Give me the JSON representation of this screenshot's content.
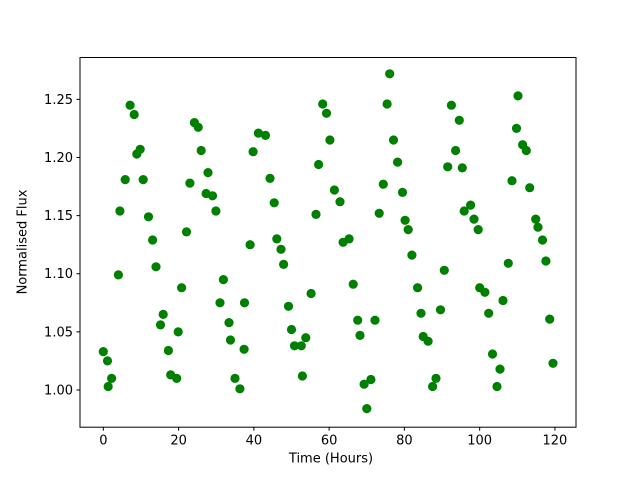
{
  "figure": {
    "background": "#ffffff",
    "axes_box_color": "#000000",
    "text_color": "#000000"
  },
  "chart_data": {
    "type": "scatter",
    "title": "",
    "xlabel": "Time (Hours)",
    "ylabel": "Normalised Flux",
    "xlim": [
      -6.2,
      125.6
    ],
    "ylim": [
      0.968,
      1.286
    ],
    "x_ticks": [
      0,
      20,
      40,
      60,
      80,
      100,
      120
    ],
    "y_ticks": [
      1.0,
      1.05,
      1.1,
      1.15,
      1.2,
      1.25
    ],
    "y_tick_decimals": 2,
    "grid": false,
    "legend_position": "none",
    "series": [
      {
        "name": "normalised-flux-points",
        "marker": "circle",
        "color": "#008000",
        "marker_radius_px": 4.6,
        "points": [
          [
            7.1,
            1.245
          ],
          [
            8.2,
            1.237
          ],
          [
            24.2,
            1.23
          ],
          [
            25.2,
            1.226
          ],
          [
            9.8,
            1.207
          ],
          [
            8.9,
            1.203
          ],
          [
            26.0,
            1.206
          ],
          [
            5.8,
            1.181
          ],
          [
            10.6,
            1.181
          ],
          [
            27.8,
            1.187
          ],
          [
            23.0,
            1.178
          ],
          [
            27.3,
            1.169
          ],
          [
            29.0,
            1.167
          ],
          [
            4.4,
            1.154
          ],
          [
            12.0,
            1.149
          ],
          [
            29.9,
            1.154
          ],
          [
            22.1,
            1.136
          ],
          [
            13.1,
            1.129
          ],
          [
            76.1,
            1.272
          ],
          [
            58.3,
            1.246
          ],
          [
            59.3,
            1.238
          ],
          [
            75.4,
            1.246
          ],
          [
            41.2,
            1.221
          ],
          [
            43.1,
            1.219
          ],
          [
            60.2,
            1.215
          ],
          [
            39.8,
            1.205
          ],
          [
            77.1,
            1.215
          ],
          [
            57.2,
            1.194
          ],
          [
            78.2,
            1.196
          ],
          [
            44.3,
            1.182
          ],
          [
            61.4,
            1.172
          ],
          [
            74.4,
            1.177
          ],
          [
            62.9,
            1.162
          ],
          [
            45.4,
            1.161
          ],
          [
            79.5,
            1.17
          ],
          [
            56.5,
            1.151
          ],
          [
            73.3,
            1.152
          ],
          [
            80.2,
            1.146
          ],
          [
            81.0,
            1.138
          ],
          [
            46.1,
            1.13
          ],
          [
            47.2,
            1.121
          ],
          [
            63.7,
            1.127
          ],
          [
            65.3,
            1.13
          ],
          [
            39.0,
            1.125
          ],
          [
            110.2,
            1.253
          ],
          [
            92.5,
            1.245
          ],
          [
            94.6,
            1.232
          ],
          [
            109.8,
            1.225
          ],
          [
            111.4,
            1.211
          ],
          [
            112.4,
            1.206
          ],
          [
            93.6,
            1.206
          ],
          [
            91.5,
            1.192
          ],
          [
            95.4,
            1.191
          ],
          [
            108.6,
            1.18
          ],
          [
            113.3,
            1.174
          ],
          [
            97.6,
            1.159
          ],
          [
            95.9,
            1.154
          ],
          [
            98.5,
            1.147
          ],
          [
            99.6,
            1.138
          ],
          [
            114.9,
            1.147
          ],
          [
            115.5,
            1.14
          ],
          [
            116.7,
            1.129
          ],
          [
            14.0,
            1.106
          ],
          [
            4.0,
            1.099
          ],
          [
            20.8,
            1.088
          ],
          [
            31.9,
            1.095
          ],
          [
            31.0,
            1.075
          ],
          [
            37.5,
            1.075
          ],
          [
            15.9,
            1.065
          ],
          [
            15.2,
            1.056
          ],
          [
            33.4,
            1.058
          ],
          [
            19.9,
            1.05
          ],
          [
            33.8,
            1.043
          ],
          [
            17.3,
            1.034
          ],
          [
            0.0,
            1.033
          ],
          [
            1.1,
            1.025
          ],
          [
            37.4,
            1.035
          ],
          [
            17.9,
            1.013
          ],
          [
            19.5,
            1.01
          ],
          [
            2.2,
            1.01
          ],
          [
            1.3,
            1.003
          ],
          [
            35.0,
            1.01
          ],
          [
            36.3,
            1.001
          ],
          [
            47.9,
            1.108
          ],
          [
            55.2,
            1.083
          ],
          [
            66.4,
            1.091
          ],
          [
            49.2,
            1.072
          ],
          [
            67.6,
            1.06
          ],
          [
            72.2,
            1.06
          ],
          [
            50.0,
            1.052
          ],
          [
            68.2,
            1.047
          ],
          [
            53.8,
            1.045
          ],
          [
            50.8,
            1.038
          ],
          [
            52.6,
            1.038
          ],
          [
            52.9,
            1.012
          ],
          [
            69.3,
            1.005
          ],
          [
            71.1,
            1.009
          ],
          [
            70.0,
            0.984
          ],
          [
            82.0,
            1.116
          ],
          [
            117.6,
            1.111
          ],
          [
            107.6,
            1.109
          ],
          [
            90.6,
            1.103
          ],
          [
            83.5,
            1.088
          ],
          [
            100.0,
            1.088
          ],
          [
            101.4,
            1.084
          ],
          [
            106.2,
            1.077
          ],
          [
            89.6,
            1.069
          ],
          [
            84.4,
            1.066
          ],
          [
            102.4,
            1.066
          ],
          [
            118.6,
            1.061
          ],
          [
            85.0,
            1.046
          ],
          [
            86.3,
            1.042
          ],
          [
            103.4,
            1.031
          ],
          [
            119.5,
            1.023
          ],
          [
            105.4,
            1.018
          ],
          [
            88.4,
            1.01
          ],
          [
            87.5,
            1.003
          ],
          [
            104.6,
            1.003
          ]
        ]
      }
    ]
  }
}
